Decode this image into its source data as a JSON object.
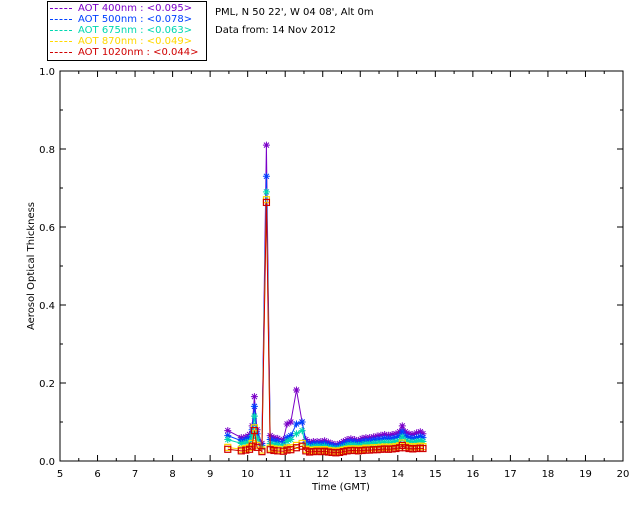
{
  "header": {
    "station": "PML, N 50 22', W 04 08', Alt 0m",
    "date": "Data from: 14 Nov 2012"
  },
  "legend": [
    {
      "label": "AOT  400nm : <0.095>",
      "color": "#7a00c8"
    },
    {
      "label": "AOT  500nm : <0.078>",
      "color": "#0040ff"
    },
    {
      "label": "AOT  675nm : <0.063>",
      "color": "#00d8b0"
    },
    {
      "label": "AOT  870nm : <0.049>",
      "color": "#ffd800"
    },
    {
      "label": "AOT 1020nm : <0.044>",
      "color": "#d00000"
    }
  ],
  "chart_data": {
    "type": "line",
    "xlabel": "Time (GMT)",
    "ylabel": "Aerosol Optical Thickness",
    "xlim": [
      5,
      20
    ],
    "ylim": [
      0,
      1.0
    ],
    "xticks": [
      "5",
      "6",
      "7",
      "8",
      "9",
      "10",
      "11",
      "12",
      "13",
      "14",
      "15",
      "16",
      "17",
      "18",
      "19",
      "20"
    ],
    "yticks": [
      "0.0",
      "0.2",
      "0.4",
      "0.6",
      "0.8",
      "1.0"
    ],
    "grid": false,
    "x": [
      9.47,
      9.83,
      9.95,
      10.05,
      10.12,
      10.18,
      10.25,
      10.38,
      10.5,
      10.6,
      10.7,
      10.8,
      10.95,
      11.05,
      11.15,
      11.3,
      11.45,
      11.55,
      11.65,
      11.75,
      11.85,
      11.95,
      12.05,
      12.15,
      12.25,
      12.35,
      12.45,
      12.55,
      12.65,
      12.75,
      12.85,
      12.95,
      13.05,
      13.15,
      13.25,
      13.35,
      13.45,
      13.55,
      13.65,
      13.75,
      13.85,
      13.95,
      14.05,
      14.12,
      14.2,
      14.3,
      14.4,
      14.5,
      14.6,
      14.67
    ],
    "series": [
      {
        "color": "#7a00c8",
        "marker": "asterisk",
        "values": [
          0.078,
          0.06,
          0.062,
          0.068,
          0.09,
          0.165,
          0.08,
          0.045,
          0.81,
          0.065,
          0.06,
          0.058,
          0.055,
          0.095,
          0.1,
          0.182,
          0.1,
          0.055,
          0.048,
          0.05,
          0.05,
          0.05,
          0.052,
          0.048,
          0.045,
          0.042,
          0.045,
          0.05,
          0.055,
          0.057,
          0.055,
          0.053,
          0.058,
          0.06,
          0.06,
          0.062,
          0.064,
          0.066,
          0.068,
          0.066,
          0.068,
          0.07,
          0.075,
          0.09,
          0.075,
          0.07,
          0.068,
          0.072,
          0.075,
          0.07
        ]
      },
      {
        "color": "#0040ff",
        "marker": "asterisk",
        "values": [
          0.065,
          0.052,
          0.055,
          0.06,
          0.08,
          0.14,
          0.07,
          0.04,
          0.73,
          0.055,
          0.052,
          0.05,
          0.048,
          0.06,
          0.065,
          0.095,
          0.1,
          0.048,
          0.042,
          0.044,
          0.045,
          0.044,
          0.045,
          0.042,
          0.04,
          0.037,
          0.04,
          0.044,
          0.048,
          0.05,
          0.049,
          0.047,
          0.05,
          0.052,
          0.052,
          0.054,
          0.055,
          0.056,
          0.058,
          0.057,
          0.058,
          0.06,
          0.064,
          0.075,
          0.064,
          0.06,
          0.058,
          0.06,
          0.063,
          0.06
        ]
      },
      {
        "color": "#00d8b0",
        "marker": "asterisk",
        "values": [
          0.055,
          0.045,
          0.047,
          0.05,
          0.065,
          0.115,
          0.058,
          0.035,
          0.69,
          0.045,
          0.043,
          0.042,
          0.04,
          0.05,
          0.055,
          0.07,
          0.078,
          0.04,
          0.035,
          0.037,
          0.038,
          0.037,
          0.038,
          0.035,
          0.033,
          0.031,
          0.033,
          0.036,
          0.04,
          0.042,
          0.041,
          0.04,
          0.042,
          0.044,
          0.044,
          0.045,
          0.046,
          0.047,
          0.048,
          0.047,
          0.048,
          0.05,
          0.052,
          0.062,
          0.053,
          0.05,
          0.048,
          0.05,
          0.052,
          0.05
        ]
      },
      {
        "color": "#ffd800",
        "marker": "square",
        "values": [
          0.035,
          0.03,
          0.032,
          0.035,
          0.045,
          0.085,
          0.04,
          0.028,
          0.67,
          0.033,
          0.031,
          0.03,
          0.029,
          0.033,
          0.034,
          0.04,
          0.045,
          0.03,
          0.027,
          0.028,
          0.029,
          0.028,
          0.029,
          0.027,
          0.026,
          0.024,
          0.026,
          0.028,
          0.03,
          0.031,
          0.031,
          0.03,
          0.031,
          0.033,
          0.033,
          0.034,
          0.034,
          0.035,
          0.036,
          0.035,
          0.036,
          0.037,
          0.039,
          0.046,
          0.039,
          0.037,
          0.036,
          0.037,
          0.038,
          0.037
        ]
      },
      {
        "color": "#d00000",
        "marker": "square",
        "values": [
          0.03,
          0.026,
          0.028,
          0.03,
          0.038,
          0.078,
          0.035,
          0.024,
          0.663,
          0.029,
          0.027,
          0.026,
          0.025,
          0.028,
          0.029,
          0.034,
          0.038,
          0.026,
          0.023,
          0.024,
          0.025,
          0.024,
          0.025,
          0.023,
          0.022,
          0.021,
          0.022,
          0.024,
          0.026,
          0.027,
          0.027,
          0.026,
          0.027,
          0.028,
          0.028,
          0.029,
          0.029,
          0.03,
          0.031,
          0.03,
          0.031,
          0.032,
          0.034,
          0.04,
          0.034,
          0.032,
          0.031,
          0.032,
          0.033,
          0.032
        ]
      }
    ]
  }
}
